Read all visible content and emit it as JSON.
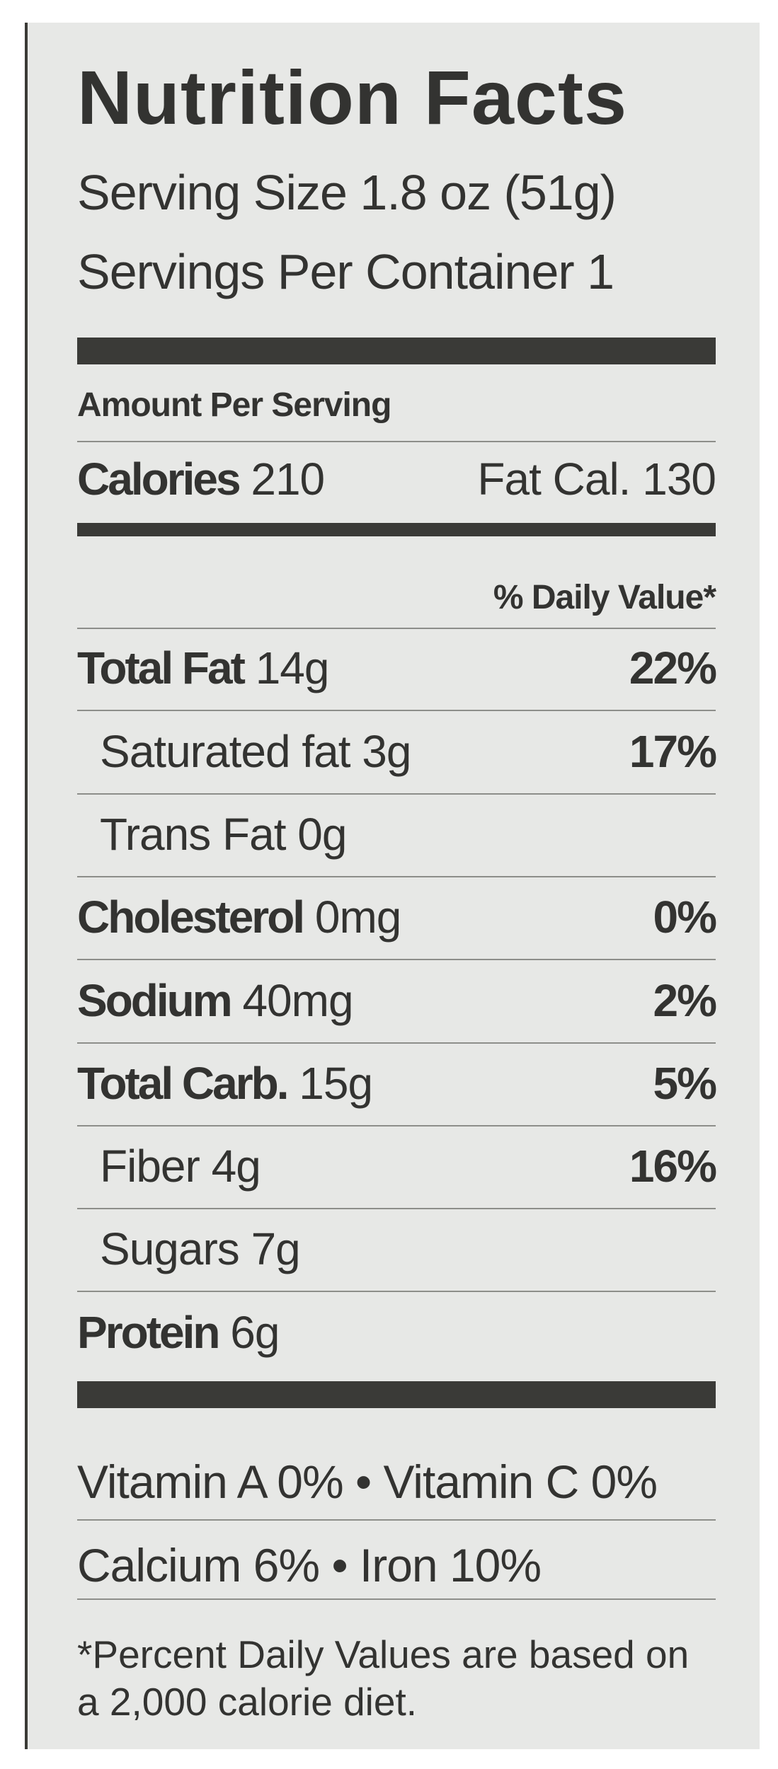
{
  "header": {
    "title": "Nutrition Facts",
    "serving_size": "Serving Size 1.8 oz (51g)",
    "servings_per_container": "Servings Per Container 1"
  },
  "amount_per_serving": "Amount Per Serving",
  "calories": {
    "label": "Calories",
    "value": "210",
    "fat_calories": "Fat Cal. 130"
  },
  "daily_value_header": "% Daily Value*",
  "rows": [
    {
      "name": "Total Fat",
      "amount": "14g",
      "percent": "22%"
    },
    {
      "name": "Saturated fat",
      "amount": "3g",
      "percent": "17%"
    },
    {
      "name": "Trans Fat",
      "amount": "0g"
    },
    {
      "name": "Cholesterol",
      "amount": "0mg",
      "percent": "0%"
    },
    {
      "name": "Sodium",
      "amount": "40mg",
      "percent": "2%"
    },
    {
      "name": "Total Carb.",
      "amount": "15g",
      "percent": "5%"
    },
    {
      "name": "Fiber",
      "amount": "4g",
      "percent": "16%"
    },
    {
      "name": "Sugars",
      "amount": "7g"
    },
    {
      "name": "Protein",
      "amount": "6g"
    }
  ],
  "vitamins": [
    "Vitamin A 0% • Vitamin C 0%",
    "Calcium 6% • Iron 10%"
  ],
  "footnote": [
    "*Percent Daily Values are based on",
    "a 2,000 calorie diet."
  ]
}
